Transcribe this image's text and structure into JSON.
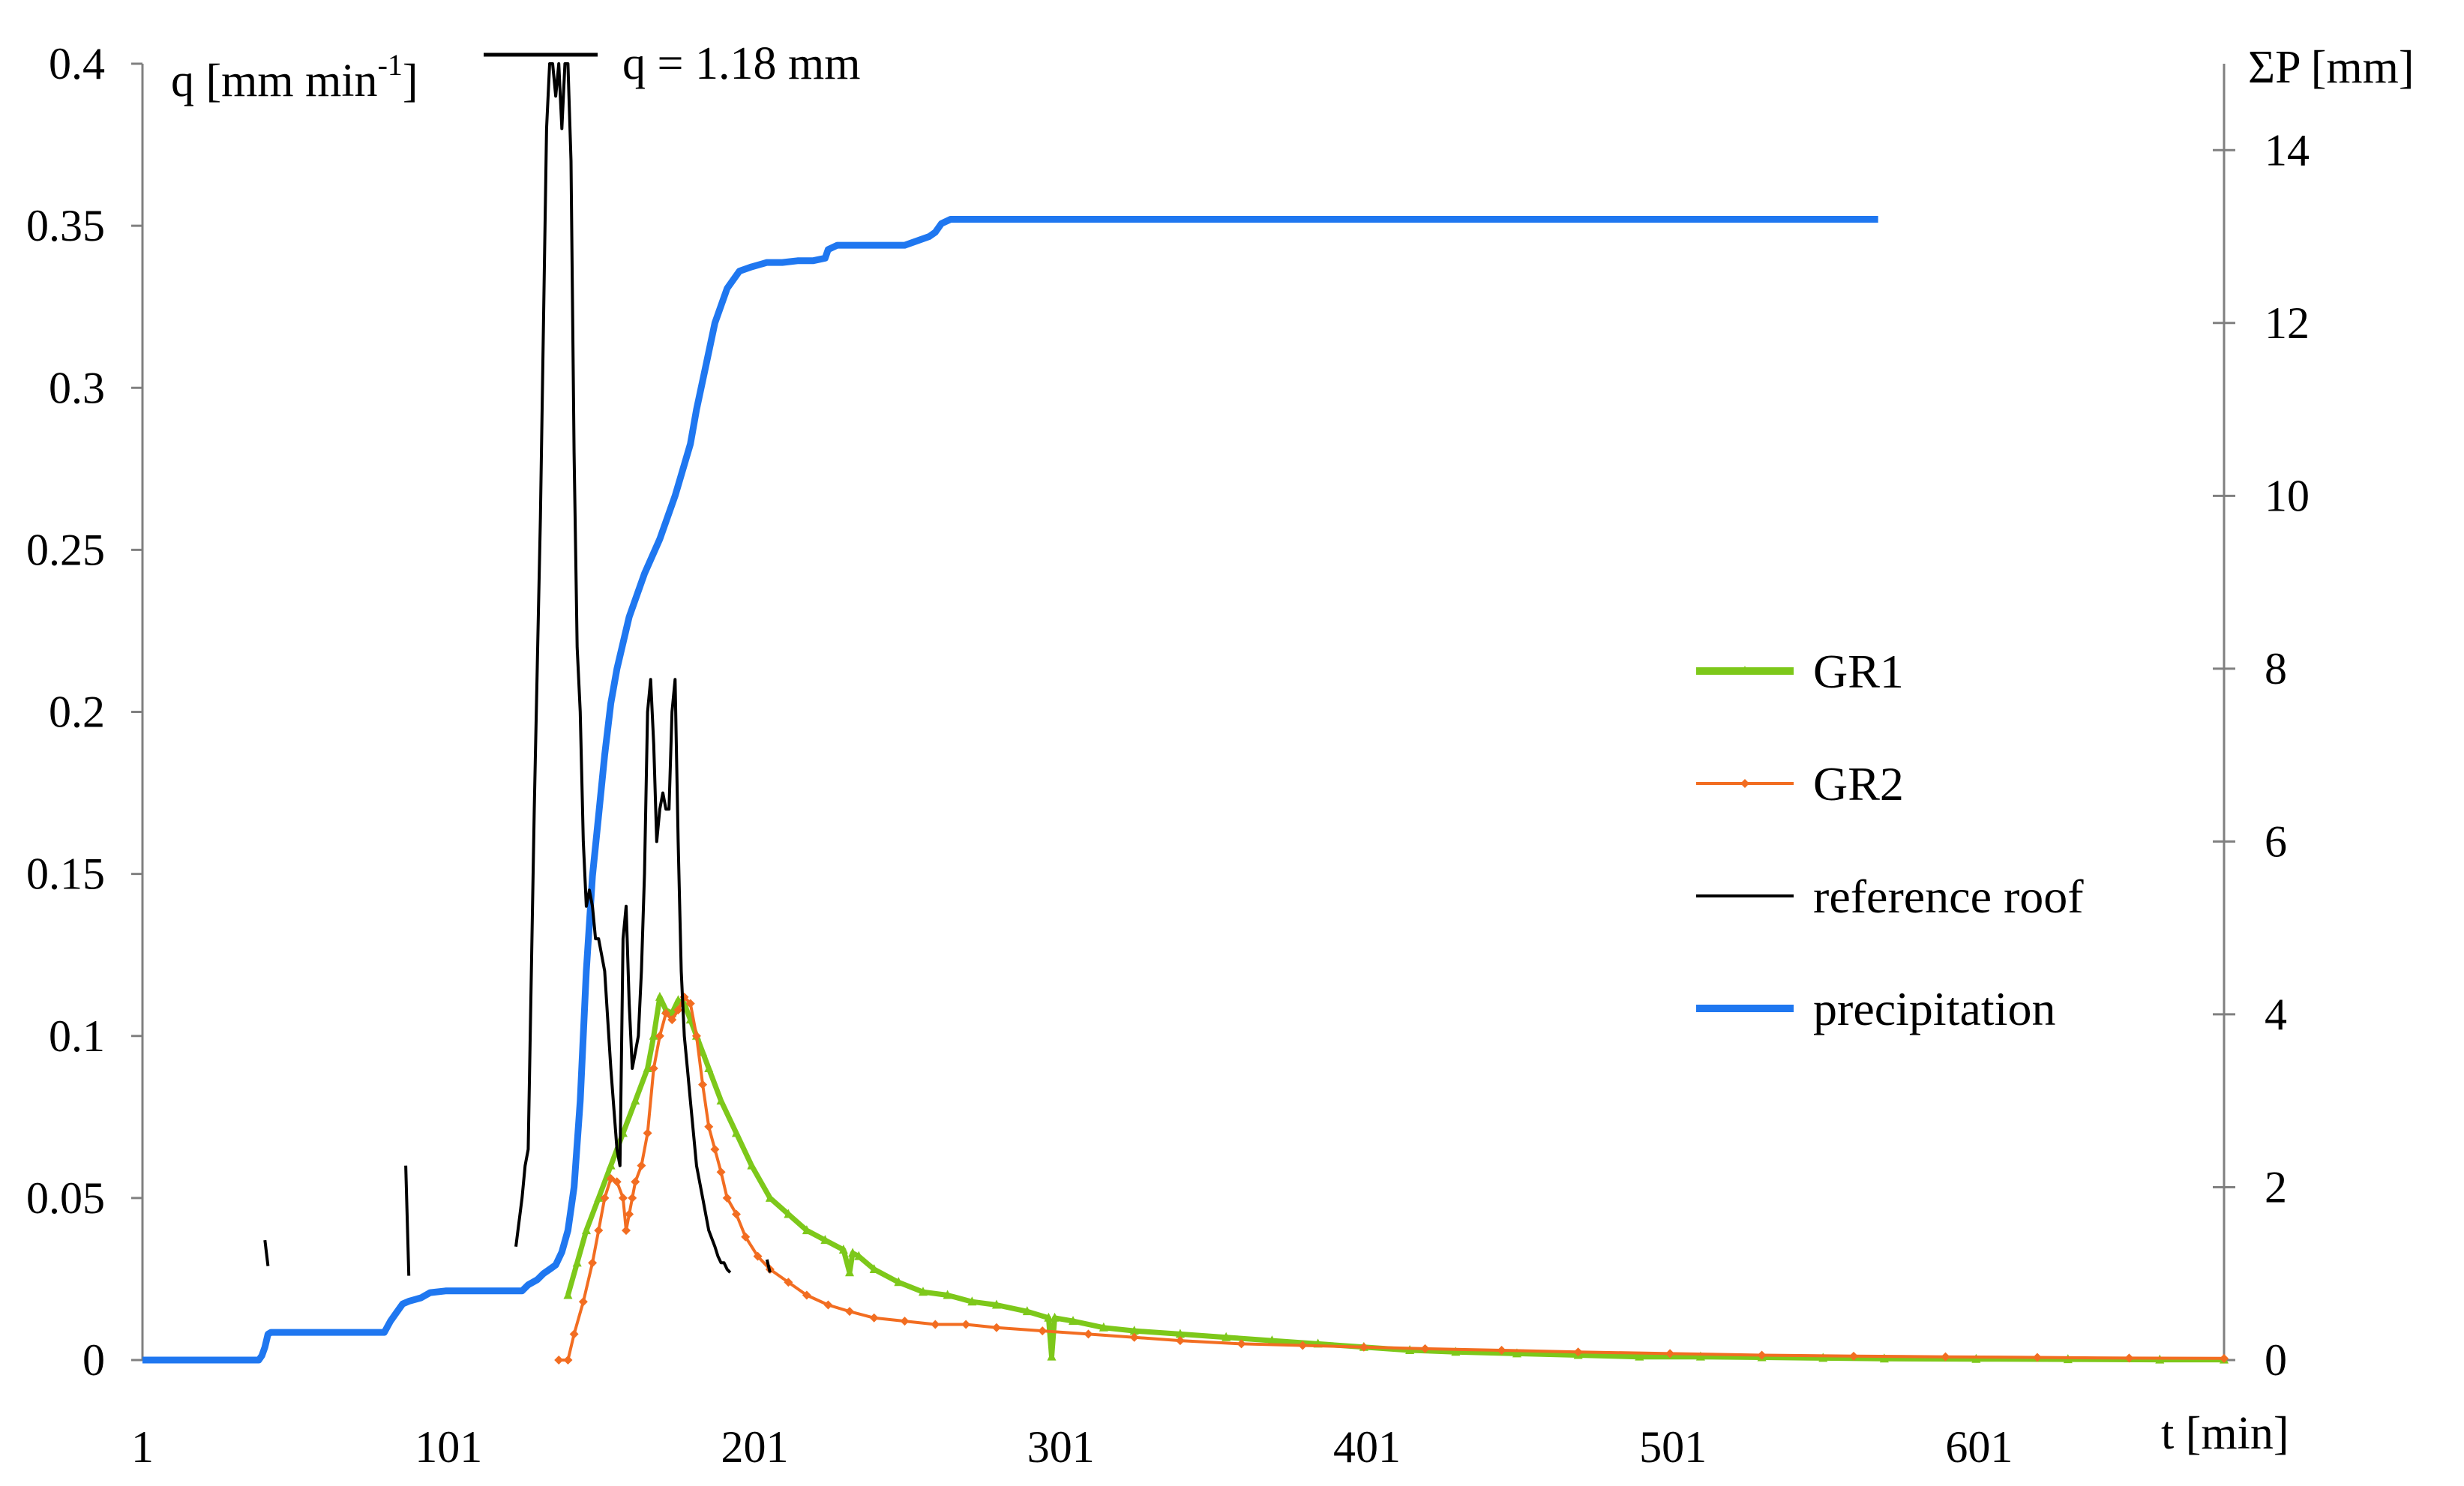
{
  "chart_data": {
    "type": "line",
    "title": "",
    "x_axis": {
      "label": "t [min]",
      "range": [
        1,
        681
      ],
      "ticks": [
        1,
        101,
        201,
        301,
        401,
        501,
        601
      ]
    },
    "y_left_axis": {
      "label_main": "q  [mm min",
      "label_sup": "-1",
      "label_end": "]",
      "range": [
        0,
        0.4
      ],
      "ticks": [
        "0",
        "0.05",
        "0.1",
        "0.15",
        "0.2",
        "0.25",
        "0.3",
        "0.35",
        "0.4"
      ]
    },
    "y_right_axis": {
      "label": "ΣP [mm]",
      "range": [
        0,
        15
      ],
      "ticks": [
        0,
        2,
        4,
        6,
        8,
        10,
        12,
        14
      ]
    },
    "annotations": [
      {
        "text": "q = 1.18 mm"
      }
    ],
    "legend": {
      "position": "right",
      "entries": [
        "GR1",
        "GR2",
        "reference roof",
        "precipitation"
      ]
    },
    "series": [
      {
        "name": "GR1",
        "axis": "left",
        "color": "#7dc81a",
        "marker": "triangle",
        "x": [
          140,
          143,
          146,
          150,
          154,
          158,
          162,
          166,
          168,
          170,
          172,
          174,
          176,
          178,
          180,
          182,
          184,
          186,
          190,
          195,
          200,
          206,
          212,
          218,
          224,
          230,
          232,
          233,
          235,
          240,
          248,
          256,
          264,
          272,
          280,
          290,
          297,
          298,
          299,
          305,
          315,
          325,
          340,
          355,
          370,
          385,
          400,
          415,
          430,
          450,
          470,
          490,
          510,
          530,
          550,
          570,
          600,
          630,
          660,
          681
        ],
        "y": [
          0.02,
          0.03,
          0.04,
          0.05,
          0.06,
          0.07,
          0.08,
          0.09,
          0.1,
          0.112,
          0.108,
          0.107,
          0.111,
          0.11,
          0.105,
          0.1,
          0.095,
          0.09,
          0.08,
          0.07,
          0.06,
          0.05,
          0.045,
          0.04,
          0.037,
          0.034,
          0.027,
          0.033,
          0.032,
          0.028,
          0.024,
          0.021,
          0.02,
          0.018,
          0.017,
          0.015,
          0.013,
          0.001,
          0.013,
          0.012,
          0.01,
          0.009,
          0.008,
          0.007,
          0.006,
          0.005,
          0.004,
          0.003,
          0.0025,
          0.002,
          0.0015,
          0.001,
          0.001,
          0.0008,
          0.0006,
          0.0004,
          0.0003,
          0.0002,
          0.0001,
          0.0001
        ]
      },
      {
        "name": "GR2",
        "axis": "left",
        "color": "#f26d21",
        "marker": "diamond",
        "x": [
          137,
          140,
          142,
          145,
          148,
          150,
          152,
          154,
          156,
          158,
          159,
          160,
          161,
          162,
          164,
          166,
          168,
          170,
          172,
          174,
          176,
          178,
          180,
          182,
          184,
          186,
          188,
          190,
          192,
          195,
          198,
          202,
          206,
          212,
          218,
          225,
          232,
          240,
          250,
          260,
          270,
          280,
          295,
          310,
          325,
          340,
          360,
          380,
          400,
          420,
          445,
          470,
          500,
          530,
          560,
          590,
          620,
          650,
          681
        ],
        "y": [
          0,
          0,
          0.008,
          0.018,
          0.03,
          0.04,
          0.05,
          0.056,
          0.055,
          0.05,
          0.04,
          0.045,
          0.05,
          0.055,
          0.06,
          0.07,
          0.09,
          0.1,
          0.107,
          0.105,
          0.108,
          0.112,
          0.11,
          0.1,
          0.085,
          0.072,
          0.065,
          0.058,
          0.05,
          0.045,
          0.038,
          0.032,
          0.028,
          0.024,
          0.02,
          0.017,
          0.015,
          0.013,
          0.012,
          0.011,
          0.011,
          0.01,
          0.009,
          0.008,
          0.007,
          0.006,
          0.005,
          0.0045,
          0.004,
          0.0035,
          0.003,
          0.0025,
          0.002,
          0.0015,
          0.0012,
          0.001,
          0.0008,
          0.0006,
          0.0005
        ]
      },
      {
        "name": "reference roof",
        "axis": "left",
        "color": "#000000",
        "marker": "none",
        "x": [
          123,
          125,
          126,
          127,
          129,
          131,
          132,
          133,
          134,
          135,
          136,
          137,
          138,
          139,
          140,
          141,
          142,
          143,
          144,
          145,
          146,
          147,
          148,
          149,
          150,
          152,
          154,
          156,
          157,
          158,
          159,
          160,
          161,
          162,
          163,
          164,
          165,
          166,
          167,
          168,
          169,
          170,
          171,
          172,
          173,
          174,
          175,
          176,
          177,
          178,
          179,
          180,
          181,
          182,
          184,
          186,
          188,
          189,
          190,
          191,
          192,
          193
        ],
        "y": [
          0.035,
          0.05,
          0.06,
          0.065,
          0.17,
          0.26,
          0.32,
          0.38,
          0.4,
          0.4,
          0.39,
          0.4,
          0.38,
          0.4,
          0.4,
          0.37,
          0.28,
          0.22,
          0.2,
          0.16,
          0.14,
          0.145,
          0.14,
          0.13,
          0.13,
          0.12,
          0.09,
          0.065,
          0.06,
          0.13,
          0.14,
          0.11,
          0.09,
          0.095,
          0.1,
          0.12,
          0.15,
          0.2,
          0.21,
          0.19,
          0.16,
          0.17,
          0.175,
          0.17,
          0.17,
          0.2,
          0.21,
          0.16,
          0.12,
          0.1,
          0.09,
          0.08,
          0.07,
          0.06,
          0.05,
          0.04,
          0.035,
          0.032,
          0.03,
          0.03,
          0.028,
          0.027
        ]
      },
      {
        "name": "precipitation",
        "axis": "right",
        "color": "#1f77f0",
        "marker": "none",
        "x": [
          1,
          30,
          39,
          40,
          41,
          42,
          43,
          44,
          45,
          70,
          80,
          82,
          84,
          86,
          88,
          90,
          92,
          95,
          100,
          105,
          110,
          115,
          125,
          127,
          130,
          132,
          134,
          136,
          138,
          140,
          142,
          144,
          146,
          148,
          150,
          152,
          154,
          156,
          160,
          165,
          170,
          175,
          180,
          182,
          185,
          188,
          192,
          196,
          200,
          205,
          210,
          215,
          220,
          224,
          225,
          228,
          235,
          250,
          258,
          260,
          262,
          265,
          270,
          300,
          350,
          400,
          450,
          500,
          550,
          568
        ],
        "y": [
          0,
          0,
          0,
          0.05,
          0.15,
          0.3,
          0.32,
          0.32,
          0.32,
          0.32,
          0.32,
          0.45,
          0.55,
          0.65,
          0.68,
          0.7,
          0.72,
          0.78,
          0.8,
          0.8,
          0.8,
          0.8,
          0.8,
          0.87,
          0.93,
          1.0,
          1.05,
          1.1,
          1.25,
          1.5,
          2.0,
          3.0,
          4.5,
          5.6,
          6.3,
          7.0,
          7.6,
          8.0,
          8.6,
          9.1,
          9.5,
          10.0,
          10.6,
          11.0,
          11.5,
          12.0,
          12.4,
          12.6,
          12.65,
          12.7,
          12.7,
          12.72,
          12.72,
          12.75,
          12.85,
          12.9,
          12.9,
          12.9,
          13.0,
          13.05,
          13.15,
          13.2,
          13.2,
          13.2,
          13.2,
          13.2,
          13.2,
          13.2,
          13.2,
          13.2
        ]
      }
    ],
    "stray_marks": [
      {
        "x": [
          41,
          42
        ],
        "y": [
          0.037,
          0.029
        ]
      },
      {
        "x": [
          87,
          88
        ],
        "y": [
          0.06,
          0.026
        ]
      },
      {
        "x": [
          205,
          206
        ],
        "y": [
          0.031,
          0.027
        ]
      }
    ]
  }
}
